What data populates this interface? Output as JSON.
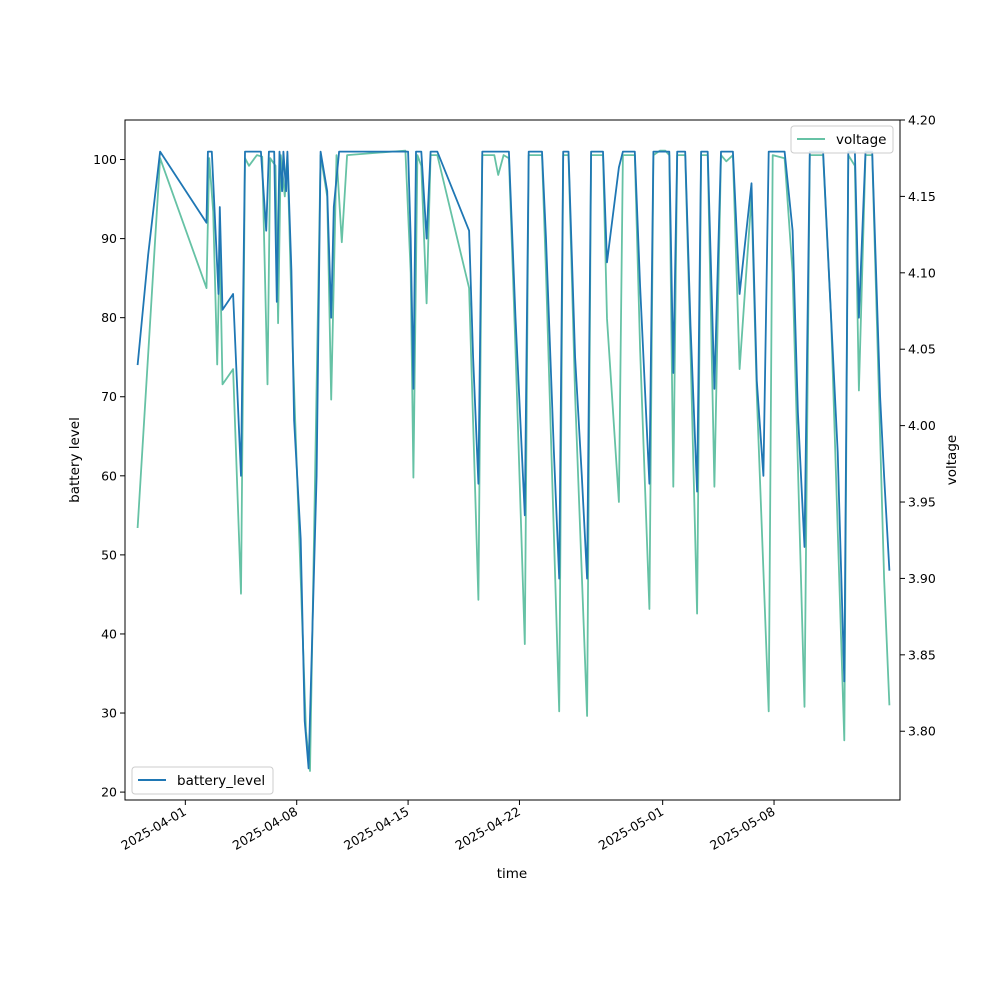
{
  "chart_data": {
    "type": "line",
    "xlabel": "time",
    "x_ticks": [
      "2025-04-01",
      "2025-04-08",
      "2025-04-15",
      "2025-04-22",
      "2025-05-01",
      "2025-05-08"
    ],
    "x_range": [
      "2025-03-28T05:00",
      "2025-05-15T22:00"
    ],
    "left_axis": {
      "label": "battery level",
      "range": [
        19,
        105
      ],
      "ticks": [
        20,
        30,
        40,
        50,
        60,
        70,
        80,
        90,
        100
      ]
    },
    "right_axis": {
      "label": "voltage",
      "range": [
        3.755,
        4.2
      ],
      "ticks": [
        "3.80",
        "3.85",
        "3.90",
        "3.95",
        "4.00",
        "4.05",
        "4.10",
        "4.15",
        "4.20"
      ]
    },
    "grid": false,
    "series": [
      {
        "name": "battery_level",
        "axis": "left",
        "color": "#1f77b4",
        "legend_position": "lower-left",
        "points": [
          [
            "2025-03-29T00:00",
            74
          ],
          [
            "2025-03-29T16:00",
            88
          ],
          [
            "2025-03-30T10:00",
            101
          ],
          [
            "2025-04-02T08:00",
            92
          ],
          [
            "2025-04-02T10:00",
            101
          ],
          [
            "2025-04-02T16:00",
            101
          ],
          [
            "2025-04-03T02:00",
            83
          ],
          [
            "2025-04-03T04:00",
            94
          ],
          [
            "2025-04-03T08:00",
            81
          ],
          [
            "2025-04-04T00:00",
            83
          ],
          [
            "2025-04-04T12:00",
            60
          ],
          [
            "2025-04-04T18:00",
            101
          ],
          [
            "2025-04-05T18:00",
            101
          ],
          [
            "2025-04-06T02:00",
            91
          ],
          [
            "2025-04-06T06:00",
            101
          ],
          [
            "2025-04-06T14:00",
            101
          ],
          [
            "2025-04-06T18:00",
            82
          ],
          [
            "2025-04-06T22:00",
            101
          ],
          [
            "2025-04-07T02:00",
            96
          ],
          [
            "2025-04-07T04:00",
            101
          ],
          [
            "2025-04-07T08:00",
            96
          ],
          [
            "2025-04-07T10:00",
            101
          ],
          [
            "2025-04-07T16:00",
            86
          ],
          [
            "2025-04-07T20:00",
            67
          ],
          [
            "2025-04-08T06:00",
            52
          ],
          [
            "2025-04-08T12:00",
            29
          ],
          [
            "2025-04-08T18:00",
            23
          ],
          [
            "2025-04-09T06:00",
            60
          ],
          [
            "2025-04-09T12:00",
            101
          ],
          [
            "2025-04-09T22:00",
            96
          ],
          [
            "2025-04-10T04:00",
            80
          ],
          [
            "2025-04-10T08:00",
            94
          ],
          [
            "2025-04-10T16:00",
            101
          ],
          [
            "2025-04-10T20:00",
            101
          ],
          [
            "2025-04-15T00:00",
            101
          ],
          [
            "2025-04-15T04:00",
            90
          ],
          [
            "2025-04-15T08:00",
            71
          ],
          [
            "2025-04-15T12:00",
            101
          ],
          [
            "2025-04-15T20:00",
            101
          ],
          [
            "2025-04-16T04:00",
            90
          ],
          [
            "2025-04-16T10:00",
            101
          ],
          [
            "2025-04-16T20:00",
            101
          ],
          [
            "2025-04-18T20:00",
            91
          ],
          [
            "2025-04-19T02:00",
            75
          ],
          [
            "2025-04-19T10:00",
            59
          ],
          [
            "2025-04-19T16:00",
            101
          ],
          [
            "2025-04-21T08:00",
            101
          ],
          [
            "2025-04-21T18:00",
            80
          ],
          [
            "2025-04-22T08:00",
            55
          ],
          [
            "2025-04-22T14:00",
            101
          ],
          [
            "2025-04-23T10:00",
            101
          ],
          [
            "2025-04-23T16:00",
            90
          ],
          [
            "2025-04-24T04:00",
            63
          ],
          [
            "2025-04-24T12:00",
            47
          ],
          [
            "2025-04-24T18:00",
            101
          ],
          [
            "2025-04-25T02:00",
            101
          ],
          [
            "2025-04-25T12:00",
            75
          ],
          [
            "2025-04-25T22:00",
            60
          ],
          [
            "2025-04-26T06:00",
            47
          ],
          [
            "2025-04-26T12:00",
            101
          ],
          [
            "2025-04-27T06:00",
            101
          ],
          [
            "2025-04-27T12:00",
            87
          ],
          [
            "2025-04-28T06:00",
            99
          ],
          [
            "2025-04-28T12:00",
            101
          ],
          [
            "2025-04-29T06:00",
            101
          ],
          [
            "2025-04-29T14:00",
            84
          ],
          [
            "2025-04-30T04:00",
            59
          ],
          [
            "2025-04-30T10:00",
            101
          ],
          [
            "2025-05-01T10:00",
            101
          ],
          [
            "2025-05-01T16:00",
            73
          ],
          [
            "2025-05-01T22:00",
            101
          ],
          [
            "2025-05-02T10:00",
            101
          ],
          [
            "2025-05-02T18:00",
            79
          ],
          [
            "2025-05-03T04:00",
            58
          ],
          [
            "2025-05-03T10:00",
            101
          ],
          [
            "2025-05-03T20:00",
            101
          ],
          [
            "2025-05-04T06:00",
            71
          ],
          [
            "2025-05-04T16:00",
            101
          ],
          [
            "2025-05-05T10:00",
            101
          ],
          [
            "2025-05-05T20:00",
            83
          ],
          [
            "2025-05-06T14:00",
            97
          ],
          [
            "2025-05-06T22:00",
            72
          ],
          [
            "2025-05-07T08:00",
            60
          ],
          [
            "2025-05-07T16:00",
            101
          ],
          [
            "2025-05-08T16:00",
            101
          ],
          [
            "2025-05-09T04:00",
            91
          ],
          [
            "2025-05-09T12:00",
            68
          ],
          [
            "2025-05-09T22:00",
            51
          ],
          [
            "2025-05-10T06:00",
            101
          ],
          [
            "2025-05-11T02:00",
            101
          ],
          [
            "2025-05-11T14:00",
            80
          ],
          [
            "2025-05-12T00:00",
            63
          ],
          [
            "2025-05-12T10:00",
            34
          ],
          [
            "2025-05-12T16:00",
            101
          ],
          [
            "2025-05-13T02:00",
            101
          ],
          [
            "2025-05-13T08:00",
            80
          ],
          [
            "2025-05-13T18:00",
            101
          ],
          [
            "2025-05-14T04:00",
            101
          ],
          [
            "2025-05-14T16:00",
            70
          ],
          [
            "2025-05-14T22:00",
            60
          ],
          [
            "2025-05-15T06:00",
            48
          ]
        ]
      },
      {
        "name": "voltage",
        "axis": "right",
        "color": "#66c2a5",
        "legend_position": "upper-right",
        "points": [
          [
            "2025-03-29T00:00",
            3.933
          ],
          [
            "2025-03-30T10:00",
            4.175
          ],
          [
            "2025-04-02T08:00",
            4.09
          ],
          [
            "2025-04-02T12:00",
            4.175
          ],
          [
            "2025-04-02T18:00",
            4.14
          ],
          [
            "2025-04-03T00:00",
            4.04
          ],
          [
            "2025-04-03T04:00",
            4.12
          ],
          [
            "2025-04-03T08:00",
            4.027
          ],
          [
            "2025-04-04T00:00",
            4.037
          ],
          [
            "2025-04-04T12:00",
            3.89
          ],
          [
            "2025-04-04T18:00",
            4.175
          ],
          [
            "2025-04-05T00:00",
            4.17
          ],
          [
            "2025-04-05T12:00",
            4.177
          ],
          [
            "2025-04-05T20:00",
            4.176
          ],
          [
            "2025-04-06T04:00",
            4.027
          ],
          [
            "2025-04-06T08:00",
            4.175
          ],
          [
            "2025-04-06T16:00",
            4.17
          ],
          [
            "2025-04-06T20:00",
            4.067
          ],
          [
            "2025-04-07T00:00",
            4.177
          ],
          [
            "2025-04-07T06:00",
            4.15
          ],
          [
            "2025-04-07T10:00",
            4.177
          ],
          [
            "2025-04-07T18:00",
            4.05
          ],
          [
            "2025-04-08T06:00",
            3.9
          ],
          [
            "2025-04-08T14:00",
            3.8
          ],
          [
            "2025-04-08T20:00",
            3.774
          ],
          [
            "2025-04-09T12:00",
            4.177
          ],
          [
            "2025-04-09T22:00",
            4.15
          ],
          [
            "2025-04-10T04:00",
            4.017
          ],
          [
            "2025-04-10T12:00",
            4.177
          ],
          [
            "2025-04-10T20:00",
            4.12
          ],
          [
            "2025-04-11T04:00",
            4.177
          ],
          [
            "2025-04-14T20:00",
            4.18
          ],
          [
            "2025-04-15T04:00",
            4.1
          ],
          [
            "2025-04-15T08:00",
            3.966
          ],
          [
            "2025-04-15T14:00",
            4.177
          ],
          [
            "2025-04-15T20:00",
            4.17
          ],
          [
            "2025-04-16T04:00",
            4.08
          ],
          [
            "2025-04-16T10:00",
            4.177
          ],
          [
            "2025-04-16T20:00",
            4.177
          ],
          [
            "2025-04-18T20:00",
            4.09
          ],
          [
            "2025-04-19T10:00",
            3.886
          ],
          [
            "2025-04-19T16:00",
            4.177
          ],
          [
            "2025-04-20T10:00",
            4.177
          ],
          [
            "2025-04-20T16:00",
            4.164
          ],
          [
            "2025-04-21T00:00",
            4.177
          ],
          [
            "2025-04-21T08:00",
            4.175
          ],
          [
            "2025-04-21T18:00",
            4.05
          ],
          [
            "2025-04-22T08:00",
            3.857
          ],
          [
            "2025-04-22T14:00",
            4.177
          ],
          [
            "2025-04-23T10:00",
            4.177
          ],
          [
            "2025-04-23T16:00",
            4.1
          ],
          [
            "2025-04-24T12:00",
            3.813
          ],
          [
            "2025-04-24T18:00",
            4.177
          ],
          [
            "2025-04-25T02:00",
            4.177
          ],
          [
            "2025-04-25T12:00",
            4.02
          ],
          [
            "2025-04-26T06:00",
            3.81
          ],
          [
            "2025-04-26T12:00",
            4.177
          ],
          [
            "2025-04-27T06:00",
            4.177
          ],
          [
            "2025-04-27T12:00",
            4.07
          ],
          [
            "2025-04-28T06:00",
            3.95
          ],
          [
            "2025-04-28T12:00",
            4.177
          ],
          [
            "2025-04-29T06:00",
            4.177
          ],
          [
            "2025-04-29T14:00",
            4.05
          ],
          [
            "2025-04-30T04:00",
            3.88
          ],
          [
            "2025-04-30T10:00",
            4.177
          ],
          [
            "2025-04-30T20:00",
            4.18
          ],
          [
            "2025-05-01T04:00",
            4.18
          ],
          [
            "2025-05-01T10:00",
            4.177
          ],
          [
            "2025-05-01T16:00",
            3.96
          ],
          [
            "2025-05-01T22:00",
            4.177
          ],
          [
            "2025-05-02T10:00",
            4.177
          ],
          [
            "2025-05-02T18:00",
            4.05
          ],
          [
            "2025-05-03T04:00",
            3.877
          ],
          [
            "2025-05-03T10:00",
            4.177
          ],
          [
            "2025-05-03T20:00",
            4.177
          ],
          [
            "2025-05-04T06:00",
            3.96
          ],
          [
            "2025-05-04T16:00",
            4.177
          ],
          [
            "2025-05-05T00:00",
            4.173
          ],
          [
            "2025-05-05T10:00",
            4.177
          ],
          [
            "2025-05-05T20:00",
            4.037
          ],
          [
            "2025-05-06T14:00",
            4.15
          ],
          [
            "2025-05-06T22:00",
            4.02
          ],
          [
            "2025-05-07T16:00",
            3.813
          ],
          [
            "2025-05-07T22:00",
            4.177
          ],
          [
            "2025-05-08T16:00",
            4.175
          ],
          [
            "2025-05-09T04:00",
            4.1
          ],
          [
            "2025-05-09T22:00",
            3.816
          ],
          [
            "2025-05-10T06:00",
            4.177
          ],
          [
            "2025-05-11T02:00",
            4.177
          ],
          [
            "2025-05-11T14:00",
            4.07
          ],
          [
            "2025-05-12T10:00",
            3.794
          ],
          [
            "2025-05-12T16:00",
            4.177
          ],
          [
            "2025-05-13T02:00",
            4.17
          ],
          [
            "2025-05-13T08:00",
            4.023
          ],
          [
            "2025-05-13T18:00",
            4.177
          ],
          [
            "2025-05-14T04:00",
            4.177
          ],
          [
            "2025-05-14T22:00",
            3.9
          ],
          [
            "2025-05-15T06:00",
            3.817
          ]
        ]
      }
    ]
  }
}
